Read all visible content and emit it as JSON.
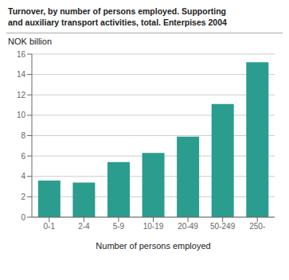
{
  "chart_data": {
    "type": "bar",
    "title": "Turnover, by number of persons employed. Supporting\nand auxiliary transport activities, total. Enterpises 2004",
    "ylabel": "NOK billion",
    "xlabel": "Number of persons employed",
    "categories": [
      "0-1",
      "2-4",
      "5-9",
      "10-19",
      "20-49",
      "50-249",
      "250-"
    ],
    "values": [
      3.6,
      3.4,
      5.4,
      6.3,
      7.9,
      11.1,
      15.2
    ],
    "color": "#2a9d8f",
    "ylim": [
      0,
      16
    ],
    "yticks": [
      0,
      2,
      4,
      6,
      8,
      10,
      12,
      14,
      16
    ],
    "grid": true
  }
}
